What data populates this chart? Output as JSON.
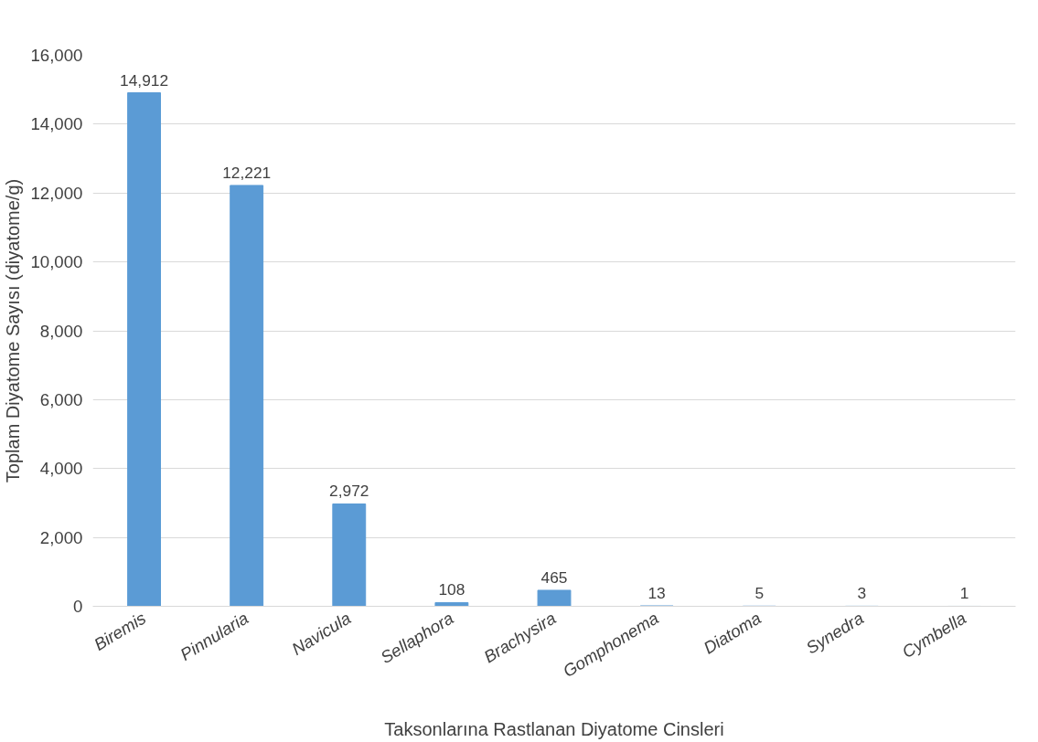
{
  "chart_data": {
    "type": "bar",
    "xlabel": "Taksonlarına Rastlanan Diyatome Cinsleri",
    "ylabel": "Toplam Diyatome Sayısı (diyatome/g)",
    "categories": [
      "Biremis",
      "Pinnularia",
      "Navicula",
      "Sellaphora",
      "Brachysira",
      "Gomphonema",
      "Diatoma",
      "Synedra",
      "Cymbella"
    ],
    "values": [
      14912,
      12221,
      2972,
      108,
      465,
      13,
      5,
      3,
      1
    ],
    "value_labels": [
      "14,912",
      "12,221",
      "2,972",
      "108",
      "465",
      "13",
      "5",
      "3",
      "1"
    ],
    "color": "#5b9bd5",
    "ylim": [
      0,
      16000
    ],
    "yticks": [
      {
        "value": 0,
        "label": "0"
      },
      {
        "value": 2000,
        "label": "2,000"
      },
      {
        "value": 4000,
        "label": "4,000"
      },
      {
        "value": 6000,
        "label": "6,000"
      },
      {
        "value": 8000,
        "label": "8,000"
      },
      {
        "value": 10000,
        "label": "10,000"
      },
      {
        "value": 12000,
        "label": "12,000"
      },
      {
        "value": 14000,
        "label": "14,000"
      },
      {
        "value": 16000,
        "label": "16,000"
      }
    ],
    "grid": "y"
  }
}
